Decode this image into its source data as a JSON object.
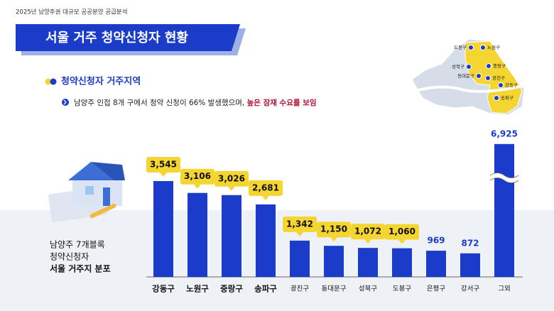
{
  "header": {
    "caption": "2025년 남양주권 대규모 공공분양 공급분석",
    "title": "서울 거주 청약신청자 현황"
  },
  "section": {
    "heading": "청약신청자 거주지역",
    "bullet": {
      "text": "남양주 인접 8개 구에서 청약 신청이 66% 발생했으며, ",
      "emphasis": "높은 잠재 수요를 보임"
    }
  },
  "note": {
    "lines": [
      "남양주 7개블록",
      "청약신청자",
      "서울 거주지 분포"
    ]
  },
  "map": {
    "labels": [
      "도봉구",
      "노원구",
      "성북구",
      "중랑구",
      "동대문구",
      "광진구",
      "강동구",
      "송파구"
    ]
  },
  "chart_data": {
    "type": "bar",
    "color": "#1b3cc9",
    "categories": [
      "강동구",
      "노원구",
      "중랑구",
      "송파구",
      "광진구",
      "동대문구",
      "성북구",
      "도봉구",
      "은평구",
      "강서구",
      "그외"
    ],
    "values": [
      3545,
      3106,
      3026,
      2681,
      1342,
      1150,
      1072,
      1060,
      969,
      872,
      6925
    ],
    "value_labels": [
      "3,545",
      "3,106",
      "3,026",
      "2,681",
      "1,342",
      "1,150",
      "1,072",
      "1,060",
      "969",
      "872",
      "6,925"
    ]
  }
}
